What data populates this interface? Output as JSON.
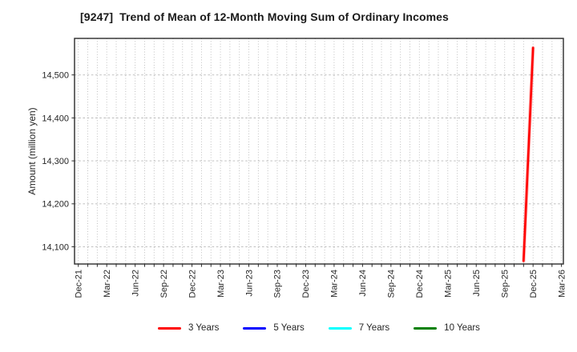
{
  "page": {
    "background": "#ffffff"
  },
  "chart_data": {
    "type": "line",
    "title": "[9247]  Trend of Mean of 12-Month Moving Sum of Ordinary Incomes",
    "xlabel": "",
    "ylabel": "Amount (million yen)",
    "grid": "on",
    "legend_position": "bottom",
    "axis_ranges": {
      "xlim_months": [
        -0.4,
        51.2
      ],
      "ylim": [
        14060,
        14585
      ]
    },
    "minor_x_tick_interval_months": 1,
    "colors": {
      "grid": "#b8b8b8",
      "axis": "#2b2b2b",
      "tick_text": "#262626",
      "background": "#ffffff"
    },
    "x_ticks": [
      {
        "month": 0,
        "label": "Dec-21"
      },
      {
        "month": 3,
        "label": "Mar-22"
      },
      {
        "month": 6,
        "label": "Jun-22"
      },
      {
        "month": 9,
        "label": "Sep-22"
      },
      {
        "month": 12,
        "label": "Dec-22"
      },
      {
        "month": 15,
        "label": "Mar-23"
      },
      {
        "month": 18,
        "label": "Jun-23"
      },
      {
        "month": 21,
        "label": "Sep-23"
      },
      {
        "month": 24,
        "label": "Dec-23"
      },
      {
        "month": 27,
        "label": "Mar-24"
      },
      {
        "month": 30,
        "label": "Jun-24"
      },
      {
        "month": 33,
        "label": "Sep-24"
      },
      {
        "month": 36,
        "label": "Dec-24"
      },
      {
        "month": 39,
        "label": "Mar-25"
      },
      {
        "month": 42,
        "label": "Jun-25"
      },
      {
        "month": 45,
        "label": "Sep-25"
      },
      {
        "month": 48,
        "label": "Dec-25"
      },
      {
        "month": 51,
        "label": "Mar-26"
      }
    ],
    "y_ticks": [
      {
        "value": 14100,
        "label": "14,100"
      },
      {
        "value": 14200,
        "label": "14,200"
      },
      {
        "value": 14300,
        "label": "14,300"
      },
      {
        "value": 14400,
        "label": "14,400"
      },
      {
        "value": 14500,
        "label": "14,500"
      }
    ],
    "series": [
      {
        "name": "3 Years",
        "color": "#ff0000",
        "points": [
          {
            "month": 47,
            "x_label": "Nov-25",
            "value": 14067
          },
          {
            "month": 48,
            "x_label": "Dec-25",
            "value": 14563
          }
        ]
      },
      {
        "name": "5 Years",
        "color": "#0000ff",
        "points": []
      },
      {
        "name": "7 Years",
        "color": "#00ffff",
        "points": []
      },
      {
        "name": "10 Years",
        "color": "#008000",
        "points": []
      }
    ]
  }
}
